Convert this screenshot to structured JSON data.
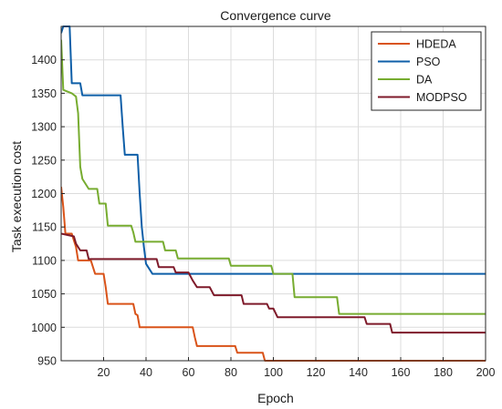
{
  "chart_data": {
    "type": "line",
    "title": "Convergence curve",
    "xlabel": "Epoch",
    "ylabel": "Task execution cost",
    "xlim": [
      0,
      200
    ],
    "ylim": [
      950,
      1450
    ],
    "xticks": [
      20,
      40,
      60,
      80,
      100,
      120,
      140,
      160,
      180,
      200
    ],
    "yticks": [
      950,
      1000,
      1050,
      1100,
      1150,
      1200,
      1250,
      1300,
      1350,
      1400
    ],
    "grid": true,
    "legend_position": "top-right",
    "series": [
      {
        "name": "HDEDA",
        "color": "#d95319",
        "points": [
          [
            0,
            1210
          ],
          [
            1,
            1180
          ],
          [
            2,
            1140
          ],
          [
            5,
            1140
          ],
          [
            7,
            1120
          ],
          [
            8,
            1100
          ],
          [
            14,
            1100
          ],
          [
            16,
            1080
          ],
          [
            20,
            1080
          ],
          [
            21,
            1060
          ],
          [
            22,
            1035
          ],
          [
            34,
            1035
          ],
          [
            35,
            1020
          ],
          [
            36,
            1018
          ],
          [
            37,
            1000
          ],
          [
            62,
            1000
          ],
          [
            63,
            985
          ],
          [
            64,
            972
          ],
          [
            82,
            972
          ],
          [
            83,
            962
          ],
          [
            95,
            962
          ],
          [
            96,
            950
          ],
          [
            200,
            950
          ]
        ]
      },
      {
        "name": "PSO",
        "color": "#0f5fa8",
        "points": [
          [
            0,
            1440
          ],
          [
            1,
            1450
          ],
          [
            4,
            1450
          ],
          [
            5,
            1365
          ],
          [
            9,
            1365
          ],
          [
            10,
            1347
          ],
          [
            28,
            1347
          ],
          [
            29,
            1300
          ],
          [
            30,
            1258
          ],
          [
            36,
            1258
          ],
          [
            37,
            1200
          ],
          [
            38,
            1150
          ],
          [
            39,
            1120
          ],
          [
            40,
            1095
          ],
          [
            43,
            1080
          ],
          [
            200,
            1080
          ]
        ]
      },
      {
        "name": "DA",
        "color": "#77ac30",
        "points": [
          [
            0,
            1430
          ],
          [
            1,
            1355
          ],
          [
            5,
            1350
          ],
          [
            7,
            1345
          ],
          [
            8,
            1320
          ],
          [
            9,
            1240
          ],
          [
            10,
            1222
          ],
          [
            13,
            1207
          ],
          [
            17,
            1207
          ],
          [
            18,
            1185
          ],
          [
            21,
            1185
          ],
          [
            22,
            1152
          ],
          [
            33,
            1152
          ],
          [
            34,
            1142
          ],
          [
            35,
            1128
          ],
          [
            48,
            1128
          ],
          [
            49,
            1115
          ],
          [
            54,
            1115
          ],
          [
            55,
            1103
          ],
          [
            79,
            1103
          ],
          [
            80,
            1092
          ],
          [
            99,
            1092
          ],
          [
            100,
            1080
          ],
          [
            109,
            1080
          ],
          [
            110,
            1045
          ],
          [
            130,
            1045
          ],
          [
            131,
            1020
          ],
          [
            200,
            1020
          ]
        ]
      },
      {
        "name": "MODPSO",
        "color": "#7e1a2a",
        "points": [
          [
            0,
            1140
          ],
          [
            6,
            1136
          ],
          [
            7,
            1125
          ],
          [
            9,
            1115
          ],
          [
            12,
            1115
          ],
          [
            13,
            1102
          ],
          [
            45,
            1102
          ],
          [
            46,
            1090
          ],
          [
            53,
            1090
          ],
          [
            54,
            1082
          ],
          [
            60,
            1082
          ],
          [
            62,
            1070
          ],
          [
            64,
            1060
          ],
          [
            70,
            1060
          ],
          [
            72,
            1048
          ],
          [
            85,
            1048
          ],
          [
            86,
            1035
          ],
          [
            97,
            1035
          ],
          [
            98,
            1028
          ],
          [
            100,
            1028
          ],
          [
            102,
            1015
          ],
          [
            143,
            1015
          ],
          [
            144,
            1005
          ],
          [
            155,
            1005
          ],
          [
            156,
            992
          ],
          [
            200,
            992
          ]
        ]
      }
    ]
  }
}
